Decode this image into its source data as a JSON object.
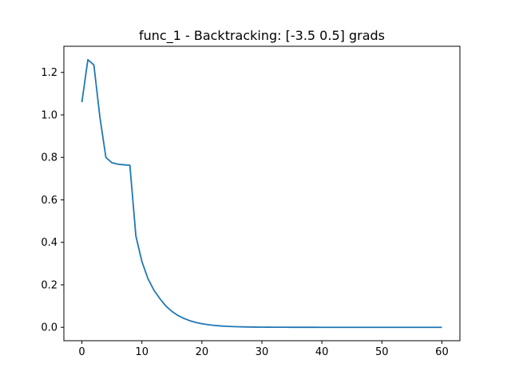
{
  "chart_data": {
    "type": "line",
    "title": "func_1 - Backtracking: [-3.5  0.5] grads",
    "xlabel": "",
    "ylabel": "",
    "xlim": [
      -3,
      63
    ],
    "ylim": [
      -0.063,
      1.323
    ],
    "grid": false,
    "x_ticks": [
      0,
      10,
      20,
      30,
      40,
      50,
      60
    ],
    "y_ticks": [
      0.0,
      0.2,
      0.4,
      0.6,
      0.8,
      1.0,
      1.2
    ],
    "y_tick_labels": [
      "0.0",
      "0.2",
      "0.4",
      "0.6",
      "0.8",
      "1.0",
      "1.2"
    ],
    "series": [
      {
        "name": "grads",
        "color": "#1f77b4",
        "x": [
          0,
          1,
          2,
          3,
          4,
          5,
          6,
          7,
          8,
          9,
          10,
          11,
          12,
          13,
          14,
          15,
          16,
          17,
          18,
          19,
          20,
          21,
          22,
          23,
          24,
          25,
          26,
          27,
          28,
          29,
          30,
          31,
          32,
          33,
          34,
          35,
          36,
          37,
          38,
          39,
          40,
          41,
          42,
          43,
          44,
          45,
          46,
          47,
          48,
          49,
          50,
          51,
          52,
          53,
          54,
          55,
          56,
          57,
          58,
          59,
          60
        ],
        "values": [
          1.06,
          1.26,
          1.235,
          0.99,
          0.8,
          0.775,
          0.768,
          0.765,
          0.763,
          0.43,
          0.31,
          0.23,
          0.175,
          0.135,
          0.1,
          0.075,
          0.056,
          0.042,
          0.031,
          0.023,
          0.017,
          0.0125,
          0.0092,
          0.0068,
          0.005,
          0.0037,
          0.0027,
          0.002,
          0.0015,
          0.0011,
          0.0008,
          0.0006,
          0.00045,
          0.00033,
          0.00025,
          0.00018,
          0.00013,
          0.0001,
          7e-05,
          5e-05,
          4e-05,
          3e-05,
          2e-05,
          2e-05,
          1e-05,
          1e-05,
          1e-05,
          1e-05,
          1e-05,
          1e-05,
          1e-05,
          0,
          0,
          0,
          0,
          0,
          0,
          0,
          0,
          0,
          0
        ]
      }
    ]
  }
}
